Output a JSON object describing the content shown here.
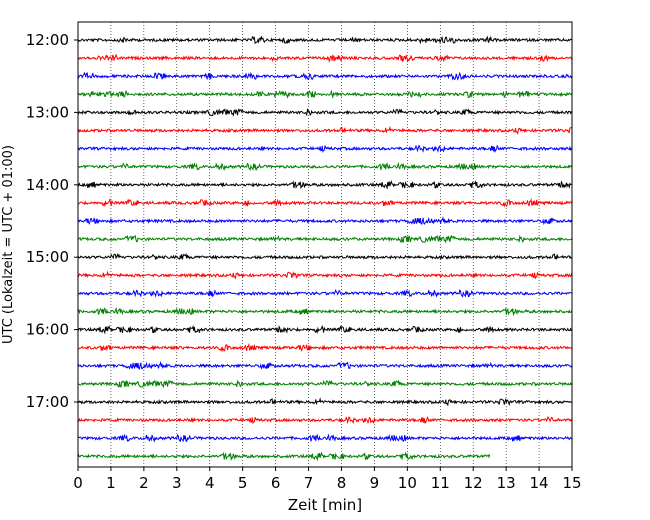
{
  "chart_data": {
    "type": "line",
    "subtype": "helicorder",
    "xlabel": "Zeit  [min]",
    "ylabel": "UTC (Lokalzeit = UTC + 01:00)",
    "xlim": [
      0,
      15
    ],
    "x_ticks": [
      0,
      1,
      2,
      3,
      4,
      5,
      6,
      7,
      8,
      9,
      10,
      11,
      12,
      13,
      14,
      15
    ],
    "x_tick_labels": [
      "0",
      "1",
      "2",
      "3",
      "4",
      "5",
      "6",
      "7",
      "8",
      "9",
      "10",
      "11",
      "12",
      "13",
      "14",
      "15"
    ],
    "y_tick_labels": [
      "12:00",
      "13:00",
      "14:00",
      "15:00",
      "16:00",
      "17:00"
    ],
    "vertical_grid": "dotted",
    "trace_colors": [
      "#000000",
      "#ff0000",
      "#0000ff",
      "#008000"
    ],
    "traces_count": 24,
    "last_trace_end_min": 12.5,
    "trace_interval_min": 15
  }
}
